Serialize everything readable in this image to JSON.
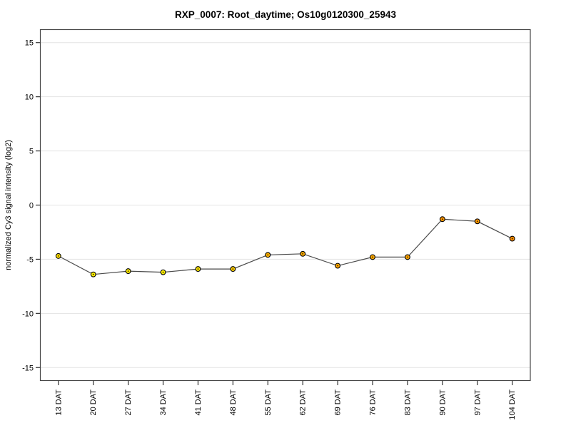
{
  "window": {
    "background": "#ffffff"
  },
  "colors": {
    "box_border": "#454545",
    "gridline": "#e3e3e3",
    "tick": "#303030",
    "line": "#4a4a4a",
    "point_border": "#000000",
    "point_center_dot": "#3a2000"
  },
  "chart_data": {
    "type": "line",
    "title": "RXP_0007: Root_daytime; Os10g0120300_25943",
    "xlabel": "",
    "ylabel": "normalized Cy3 signal intensity (log2)",
    "categories": [
      "13 DAT",
      "20 DAT",
      "27 DAT",
      "34 DAT",
      "41 DAT",
      "48 DAT",
      "55 DAT",
      "62 DAT",
      "69 DAT",
      "76 DAT",
      "83 DAT",
      "90 DAT",
      "97 DAT",
      "104 DAT"
    ],
    "values": [
      -4.7,
      -6.4,
      -6.1,
      -6.2,
      -5.9,
      -5.9,
      -4.6,
      -4.5,
      -5.6,
      -4.8,
      -4.8,
      -1.3,
      -1.5,
      -3.1
    ],
    "point_colors": [
      "#ffe100",
      "#fff200",
      "#ffee00",
      "#fff000",
      "#ffea00",
      "#ffd000",
      "#ffb300",
      "#ffae00",
      "#ffa800",
      "#ffaa00",
      "#ffa500",
      "#ff9800",
      "#ff9800",
      "#ff8f00"
    ],
    "yticks": [
      15,
      10,
      5,
      0,
      -5,
      -10,
      -15
    ],
    "ylim": [
      -16.2,
      16.2
    ],
    "grid": true,
    "legend": "none",
    "series_name": "normalized Cy3 signal intensity (log2)"
  }
}
